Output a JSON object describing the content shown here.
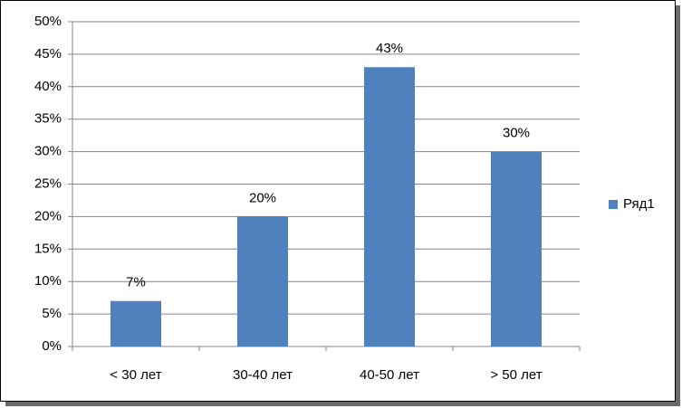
{
  "chart_data": {
    "type": "bar",
    "categories": [
      "< 30 лет",
      "30-40 лет",
      "40-50 лет",
      "> 50 лет"
    ],
    "series": [
      {
        "name": "Ряд1",
        "color": "#4f81bd",
        "values": [
          7,
          20,
          43,
          30
        ],
        "value_labels": [
          "7%",
          "20%",
          "43%",
          "30%"
        ]
      }
    ],
    "ylim": [
      0,
      50
    ],
    "yticks": [
      {
        "value": 0,
        "label": "0%"
      },
      {
        "value": 5,
        "label": "5%"
      },
      {
        "value": 10,
        "label": "10%"
      },
      {
        "value": 15,
        "label": "15%"
      },
      {
        "value": 20,
        "label": "20%"
      },
      {
        "value": 25,
        "label": "25%"
      },
      {
        "value": 30,
        "label": "30%"
      },
      {
        "value": 35,
        "label": "35%"
      },
      {
        "value": 40,
        "label": "40%"
      },
      {
        "value": 45,
        "label": "45%"
      },
      {
        "value": 50,
        "label": "50%"
      }
    ],
    "grid": true,
    "legend": "right"
  }
}
